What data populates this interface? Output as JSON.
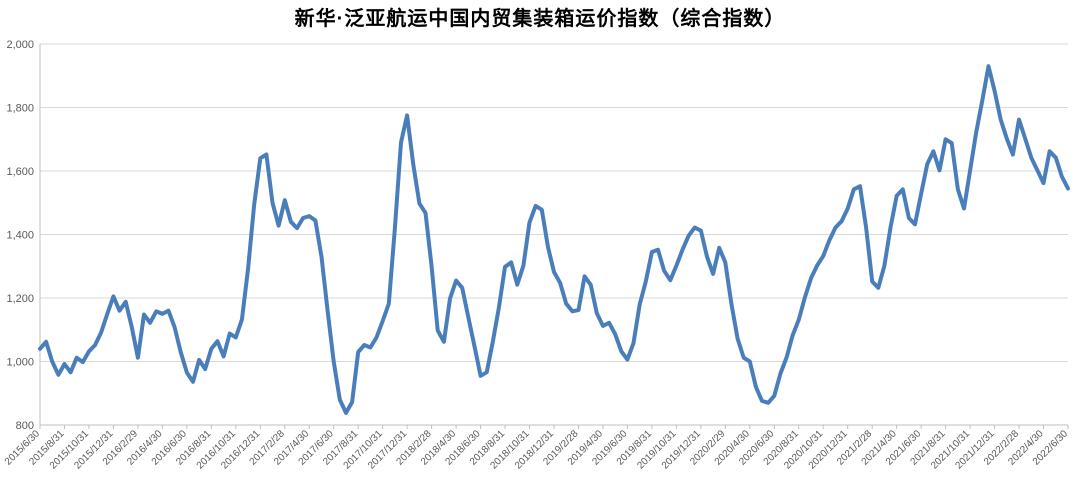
{
  "chart_data": {
    "type": "line",
    "title": "新华·泛亚航运中国内贸集装箱运价指数（综合指数）",
    "series_name": "综合指数",
    "series_color": "#4a7ebb",
    "grid_color": "#d9d9d9",
    "axis_color": "#bfbfbf",
    "tick_label_color": "#595959",
    "ylim": [
      800,
      2000
    ],
    "grid": true,
    "legend_position": "none",
    "yticks": [
      {
        "value": 800,
        "label": "800"
      },
      {
        "value": 1000,
        "label": "1,000"
      },
      {
        "value": 1200,
        "label": "1,200"
      },
      {
        "value": 1400,
        "label": "1,400"
      },
      {
        "value": 1600,
        "label": "1,600"
      },
      {
        "value": 1800,
        "label": "1,800"
      },
      {
        "value": 2000,
        "label": "2,000"
      }
    ],
    "x_tick_labels": [
      "2015/6/30",
      "2015/8/31",
      "2015/10/31",
      "2015/12/31",
      "2016/2/29",
      "2016/4/30",
      "2016/6/30",
      "2016/8/31",
      "2016/10/31",
      "2016/12/31",
      "2017/2/28",
      "2017/4/30",
      "2017/6/30",
      "2017/8/31",
      "2017/10/31",
      "2017/12/31",
      "2018/2/28",
      "2018/4/30",
      "2018/6/30",
      "2018/8/31",
      "2018/10/31",
      "2018/12/31",
      "2019/2/28",
      "2019/4/30",
      "2019/6/30",
      "2019/8/31",
      "2019/10/31",
      "2019/12/31",
      "2020/2/29",
      "2020/4/30",
      "2020/6/30",
      "2020/8/31",
      "2020/10/31",
      "2020/12/31",
      "2021/2/28",
      "2021/4/30",
      "2021/6/30",
      "2021/8/31",
      "2021/10/31",
      "2021/12/31",
      "2022/2/28",
      "2022/4/30",
      "2022/6/30"
    ],
    "x_months_span": 84,
    "points_per_month": 2,
    "values": [
      1040,
      1062,
      1000,
      958,
      992,
      966,
      1012,
      998,
      1032,
      1052,
      1092,
      1150,
      1205,
      1160,
      1188,
      1108,
      1012,
      1148,
      1122,
      1158,
      1150,
      1160,
      1108,
      1030,
      965,
      936,
      1005,
      976,
      1040,
      1064,
      1016,
      1088,
      1076,
      1132,
      1290,
      1495,
      1640,
      1652,
      1500,
      1428,
      1508,
      1440,
      1420,
      1452,
      1458,
      1444,
      1330,
      1160,
      1000,
      880,
      838,
      872,
      1030,
      1052,
      1044,
      1076,
      1128,
      1182,
      1420,
      1690,
      1775,
      1620,
      1498,
      1468,
      1300,
      1098,
      1062,
      1198,
      1255,
      1232,
      1140,
      1048,
      955,
      966,
      1062,
      1170,
      1298,
      1312,
      1242,
      1302,
      1438,
      1490,
      1478,
      1362,
      1282,
      1248,
      1182,
      1158,
      1162,
      1268,
      1242,
      1152,
      1112,
      1122,
      1086,
      1032,
      1006,
      1058,
      1180,
      1252,
      1345,
      1352,
      1286,
      1256,
      1302,
      1352,
      1396,
      1422,
      1412,
      1330,
      1276,
      1358,
      1312,
      1180,
      1072,
      1012,
      1000,
      920,
      876,
      870,
      892,
      962,
      1012,
      1082,
      1132,
      1202,
      1262,
      1302,
      1332,
      1382,
      1422,
      1442,
      1482,
      1542,
      1552,
      1422,
      1252,
      1232,
      1302,
      1422,
      1522,
      1542,
      1452,
      1432,
      1528,
      1622,
      1662,
      1602,
      1700,
      1688,
      1542,
      1482,
      1602,
      1722,
      1822,
      1930,
      1852,
      1762,
      1702,
      1652,
      1762,
      1702,
      1642,
      1602,
      1562,
      1662,
      1642,
      1582,
      1545
    ]
  }
}
